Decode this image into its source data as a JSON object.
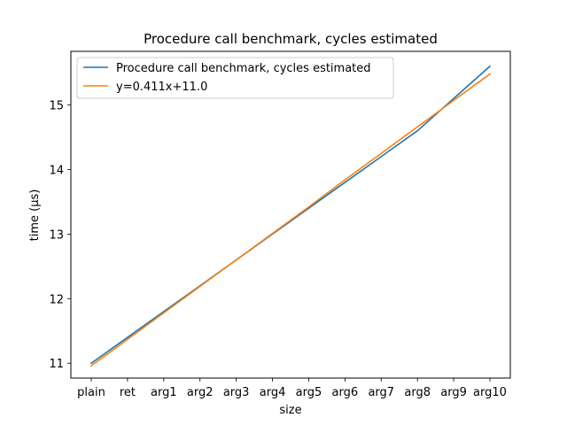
{
  "chart_data": {
    "type": "line",
    "title": "Procedure call benchmark, cycles estimated",
    "xlabel": "size",
    "ylabel": "time (µs)",
    "categories": [
      "plain",
      "ret",
      "arg1",
      "arg2",
      "arg3",
      "arg4",
      "arg5",
      "arg6",
      "arg7",
      "arg8",
      "arg9",
      "arg10"
    ],
    "series": [
      {
        "name": "Procedure call benchmark, cycles estimated",
        "color": "#1f77b4",
        "values": [
          11.0,
          11.4,
          11.8,
          12.2,
          12.6,
          13.0,
          13.4,
          13.8,
          14.2,
          14.6,
          15.1,
          15.6
        ]
      },
      {
        "name": "y=0.411x+11.0",
        "color": "#ff7f0e",
        "values": [
          10.96,
          11.37,
          11.78,
          12.19,
          12.6,
          13.01,
          13.42,
          13.84,
          14.25,
          14.66,
          15.07,
          15.48
        ]
      }
    ],
    "yticks": [
      "11",
      "12",
      "13",
      "14",
      "15"
    ],
    "ylim": [
      10.77,
      15.83
    ],
    "grid": false,
    "legend_position": "top-left"
  }
}
